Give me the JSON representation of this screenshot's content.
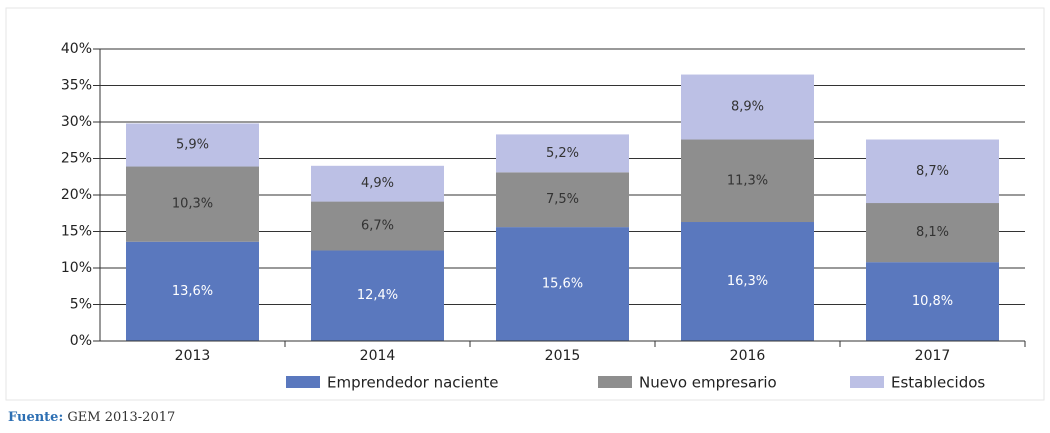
{
  "chart_data": {
    "type": "stacked_bar",
    "categories": [
      "2013",
      "2014",
      "2015",
      "2016",
      "2017"
    ],
    "series": [
      {
        "name": "Emprendedor naciente",
        "color": "#5a78be",
        "values": [
          13.6,
          12.4,
          15.6,
          16.3,
          10.8
        ],
        "value_labels": [
          "13,6%",
          "12,4%",
          "15,6%",
          "16,3%",
          "10,8%"
        ]
      },
      {
        "name": "Nuevo empresario",
        "color": "#8e8e8e",
        "values": [
          10.3,
          6.7,
          7.5,
          11.3,
          8.1
        ],
        "value_labels": [
          "10,3%",
          "6,7%",
          "7,5%",
          "11,3%",
          "8,1%"
        ]
      },
      {
        "name": "Establecidos",
        "color": "#bcc0e5",
        "values": [
          5.9,
          4.9,
          5.2,
          8.9,
          8.7
        ],
        "value_labels": [
          "5,9%",
          "4,9%",
          "5,2%",
          "8,9%",
          "8,7%"
        ]
      }
    ],
    "ylim": [
      0,
      40
    ],
    "yticks": [
      {
        "value": 0,
        "label": "0%"
      },
      {
        "value": 5,
        "label": "5%"
      },
      {
        "value": 10,
        "label": "10%"
      },
      {
        "value": 15,
        "label": "15%"
      },
      {
        "value": 20,
        "label": "20%"
      },
      {
        "value": 25,
        "label": "25%"
      },
      {
        "value": 30,
        "label": "30%"
      },
      {
        "value": 35,
        "label": "35%"
      },
      {
        "value": 40,
        "label": "40%"
      }
    ],
    "grid": true,
    "legend": "bottom",
    "source_label": "Fuente:",
    "source": "GEM 2013-2017"
  }
}
